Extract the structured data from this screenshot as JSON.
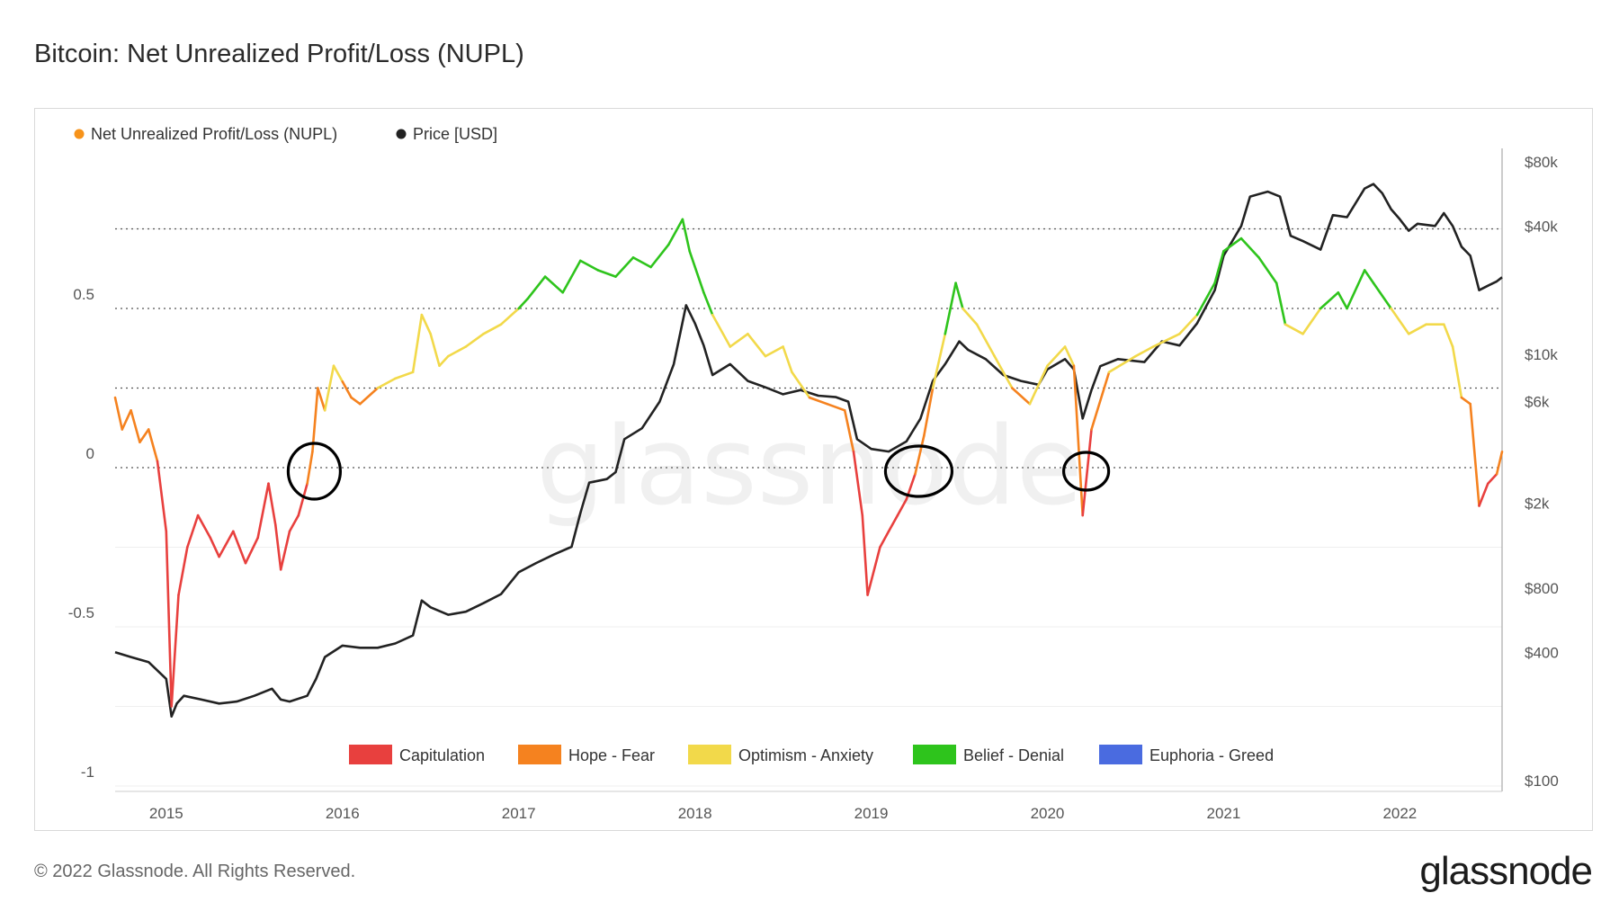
{
  "title": "Bitcoin: Net Unrealized Profit/Loss (NUPL)",
  "footer": "© 2022 Glassnode. All Rights Reserved.",
  "brand": "glassnode",
  "watermark": "glassnode",
  "colors": {
    "capitulation": "#e8403e",
    "hope_fear": "#f5821f",
    "optimism_anxiety": "#f2d94a",
    "belief_denial": "#2ec41c",
    "euphoria_greed": "#4a6be0",
    "price": "#222222",
    "nupl_legend": "#f7931a"
  },
  "chart_data": {
    "type": "line",
    "title": "Bitcoin: Net Unrealized Profit/Loss (NUPL)",
    "legend_top": [
      "Net Unrealized Profit/Loss (NUPL)",
      "Price [USD]"
    ],
    "legend_bottom": [
      "Capitulation",
      "Hope - Fear",
      "Optimism - Anxiety",
      "Belief - Denial",
      "Euphoria - Greed"
    ],
    "x_ticks": [
      "2015",
      "2016",
      "2017",
      "2018",
      "2019",
      "2020",
      "2021",
      "2022"
    ],
    "x_range": [
      2014.71,
      2022.58
    ],
    "y_left_ticks": [
      {
        "label": "0.5",
        "value": 0.5
      },
      {
        "label": "0",
        "value": 0
      },
      {
        "label": "-0.5",
        "value": -0.5
      },
      {
        "label": "-1",
        "value": -1
      }
    ],
    "y_left_range": [
      -1,
      1
    ],
    "y_right_ticks": [
      {
        "label": "$80k",
        "value": 80000
      },
      {
        "label": "$40k",
        "value": 40000
      },
      {
        "label": "$10k",
        "value": 10000
      },
      {
        "label": "$6k",
        "value": 6000
      },
      {
        "label": "$2k",
        "value": 2000
      },
      {
        "label": "$800",
        "value": 800
      },
      {
        "label": "$400",
        "value": 400
      },
      {
        "label": "$100",
        "value": 100
      }
    ],
    "y_right_scale": "log",
    "zone_thresholds": [
      0,
      0.25,
      0.5,
      0.75
    ],
    "series": [
      {
        "name": "Net Unrealized Profit/Loss (NUPL)",
        "axis": "left",
        "points": [
          [
            2014.71,
            0.22
          ],
          [
            2014.75,
            0.12
          ],
          [
            2014.8,
            0.18
          ],
          [
            2014.85,
            0.08
          ],
          [
            2014.9,
            0.12
          ],
          [
            2014.95,
            0.02
          ],
          [
            2015.0,
            -0.2
          ],
          [
            2015.03,
            -0.75
          ],
          [
            2015.07,
            -0.4
          ],
          [
            2015.12,
            -0.25
          ],
          [
            2015.18,
            -0.15
          ],
          [
            2015.25,
            -0.22
          ],
          [
            2015.3,
            -0.28
          ],
          [
            2015.38,
            -0.2
          ],
          [
            2015.45,
            -0.3
          ],
          [
            2015.52,
            -0.22
          ],
          [
            2015.58,
            -0.05
          ],
          [
            2015.62,
            -0.18
          ],
          [
            2015.65,
            -0.32
          ],
          [
            2015.7,
            -0.2
          ],
          [
            2015.75,
            -0.15
          ],
          [
            2015.8,
            -0.05
          ],
          [
            2015.83,
            0.05
          ],
          [
            2015.86,
            0.25
          ],
          [
            2015.9,
            0.18
          ],
          [
            2015.95,
            0.32
          ],
          [
            2016.0,
            0.27
          ],
          [
            2016.05,
            0.22
          ],
          [
            2016.1,
            0.2
          ],
          [
            2016.2,
            0.25
          ],
          [
            2016.3,
            0.28
          ],
          [
            2016.4,
            0.3
          ],
          [
            2016.45,
            0.48
          ],
          [
            2016.5,
            0.42
          ],
          [
            2016.55,
            0.32
          ],
          [
            2016.6,
            0.35
          ],
          [
            2016.7,
            0.38
          ],
          [
            2016.8,
            0.42
          ],
          [
            2016.9,
            0.45
          ],
          [
            2017.0,
            0.5
          ],
          [
            2017.05,
            0.53
          ],
          [
            2017.15,
            0.6
          ],
          [
            2017.25,
            0.55
          ],
          [
            2017.35,
            0.65
          ],
          [
            2017.45,
            0.62
          ],
          [
            2017.55,
            0.6
          ],
          [
            2017.65,
            0.66
          ],
          [
            2017.75,
            0.63
          ],
          [
            2017.85,
            0.7
          ],
          [
            2017.93,
            0.78
          ],
          [
            2017.97,
            0.68
          ],
          [
            2018.05,
            0.55
          ],
          [
            2018.1,
            0.48
          ],
          [
            2018.2,
            0.38
          ],
          [
            2018.3,
            0.42
          ],
          [
            2018.4,
            0.35
          ],
          [
            2018.5,
            0.38
          ],
          [
            2018.55,
            0.3
          ],
          [
            2018.65,
            0.22
          ],
          [
            2018.75,
            0.2
          ],
          [
            2018.85,
            0.18
          ],
          [
            2018.9,
            0.05
          ],
          [
            2018.95,
            -0.15
          ],
          [
            2018.98,
            -0.4
          ],
          [
            2019.05,
            -0.25
          ],
          [
            2019.1,
            -0.2
          ],
          [
            2019.15,
            -0.15
          ],
          [
            2019.2,
            -0.1
          ],
          [
            2019.25,
            -0.02
          ],
          [
            2019.3,
            0.1
          ],
          [
            2019.35,
            0.25
          ],
          [
            2019.42,
            0.42
          ],
          [
            2019.48,
            0.58
          ],
          [
            2019.52,
            0.5
          ],
          [
            2019.6,
            0.45
          ],
          [
            2019.7,
            0.35
          ],
          [
            2019.8,
            0.25
          ],
          [
            2019.9,
            0.2
          ],
          [
            2020.0,
            0.32
          ],
          [
            2020.1,
            0.38
          ],
          [
            2020.15,
            0.32
          ],
          [
            2020.2,
            -0.15
          ],
          [
            2020.25,
            0.12
          ],
          [
            2020.35,
            0.3
          ],
          [
            2020.5,
            0.35
          ],
          [
            2020.6,
            0.38
          ],
          [
            2020.75,
            0.42
          ],
          [
            2020.85,
            0.48
          ],
          [
            2020.95,
            0.58
          ],
          [
            2021.0,
            0.68
          ],
          [
            2021.1,
            0.72
          ],
          [
            2021.2,
            0.66
          ],
          [
            2021.3,
            0.58
          ],
          [
            2021.35,
            0.45
          ],
          [
            2021.45,
            0.42
          ],
          [
            2021.55,
            0.5
          ],
          [
            2021.65,
            0.55
          ],
          [
            2021.7,
            0.5
          ],
          [
            2021.8,
            0.62
          ],
          [
            2021.85,
            0.58
          ],
          [
            2021.95,
            0.5
          ],
          [
            2022.05,
            0.42
          ],
          [
            2022.15,
            0.45
          ],
          [
            2022.25,
            0.45
          ],
          [
            2022.3,
            0.38
          ],
          [
            2022.35,
            0.22
          ],
          [
            2022.4,
            0.2
          ],
          [
            2022.45,
            -0.12
          ],
          [
            2022.5,
            -0.05
          ],
          [
            2022.55,
            -0.02
          ],
          [
            2022.58,
            0.05
          ]
        ]
      },
      {
        "name": "Price [USD]",
        "axis": "right",
        "points": [
          [
            2014.71,
            400
          ],
          [
            2014.8,
            380
          ],
          [
            2014.9,
            360
          ],
          [
            2015.0,
            300
          ],
          [
            2015.03,
            200
          ],
          [
            2015.06,
            230
          ],
          [
            2015.1,
            250
          ],
          [
            2015.2,
            240
          ],
          [
            2015.3,
            230
          ],
          [
            2015.4,
            235
          ],
          [
            2015.5,
            250
          ],
          [
            2015.6,
            270
          ],
          [
            2015.65,
            240
          ],
          [
            2015.7,
            235
          ],
          [
            2015.8,
            250
          ],
          [
            2015.85,
            300
          ],
          [
            2015.9,
            380
          ],
          [
            2016.0,
            430
          ],
          [
            2016.1,
            420
          ],
          [
            2016.2,
            420
          ],
          [
            2016.3,
            440
          ],
          [
            2016.4,
            480
          ],
          [
            2016.45,
            700
          ],
          [
            2016.5,
            650
          ],
          [
            2016.6,
            600
          ],
          [
            2016.7,
            620
          ],
          [
            2016.8,
            680
          ],
          [
            2016.9,
            750
          ],
          [
            2017.0,
            950
          ],
          [
            2017.1,
            1050
          ],
          [
            2017.2,
            1150
          ],
          [
            2017.3,
            1250
          ],
          [
            2017.35,
            1800
          ],
          [
            2017.4,
            2500
          ],
          [
            2017.5,
            2600
          ],
          [
            2017.55,
            2800
          ],
          [
            2017.6,
            4000
          ],
          [
            2017.7,
            4500
          ],
          [
            2017.8,
            6000
          ],
          [
            2017.88,
            9000
          ],
          [
            2017.95,
            17000
          ],
          [
            2018.0,
            14000
          ],
          [
            2018.05,
            11000
          ],
          [
            2018.1,
            8000
          ],
          [
            2018.2,
            9000
          ],
          [
            2018.3,
            7500
          ],
          [
            2018.4,
            7000
          ],
          [
            2018.5,
            6500
          ],
          [
            2018.6,
            6800
          ],
          [
            2018.7,
            6400
          ],
          [
            2018.8,
            6300
          ],
          [
            2018.87,
            6000
          ],
          [
            2018.92,
            4000
          ],
          [
            2019.0,
            3600
          ],
          [
            2019.1,
            3500
          ],
          [
            2019.2,
            3900
          ],
          [
            2019.28,
            5000
          ],
          [
            2019.35,
            7500
          ],
          [
            2019.42,
            9000
          ],
          [
            2019.5,
            11500
          ],
          [
            2019.55,
            10500
          ],
          [
            2019.65,
            9500
          ],
          [
            2019.75,
            8000
          ],
          [
            2019.85,
            7500
          ],
          [
            2019.95,
            7200
          ],
          [
            2020.0,
            8500
          ],
          [
            2020.1,
            9500
          ],
          [
            2020.15,
            8500
          ],
          [
            2020.2,
            5000
          ],
          [
            2020.25,
            6800
          ],
          [
            2020.3,
            8800
          ],
          [
            2020.4,
            9500
          ],
          [
            2020.55,
            9200
          ],
          [
            2020.65,
            11500
          ],
          [
            2020.75,
            11000
          ],
          [
            2020.85,
            14000
          ],
          [
            2020.95,
            20000
          ],
          [
            2021.0,
            29000
          ],
          [
            2021.1,
            40000
          ],
          [
            2021.15,
            55000
          ],
          [
            2021.25,
            58000
          ],
          [
            2021.32,
            55000
          ],
          [
            2021.38,
            36000
          ],
          [
            2021.45,
            34000
          ],
          [
            2021.55,
            31000
          ],
          [
            2021.62,
            45000
          ],
          [
            2021.7,
            44000
          ],
          [
            2021.8,
            60000
          ],
          [
            2021.85,
            63000
          ],
          [
            2021.9,
            57000
          ],
          [
            2021.95,
            48000
          ],
          [
            2022.0,
            43000
          ],
          [
            2022.05,
            38000
          ],
          [
            2022.1,
            41000
          ],
          [
            2022.2,
            40000
          ],
          [
            2022.25,
            46000
          ],
          [
            2022.3,
            40000
          ],
          [
            2022.35,
            32000
          ],
          [
            2022.4,
            29000
          ],
          [
            2022.45,
            20000
          ],
          [
            2022.5,
            21000
          ],
          [
            2022.55,
            22000
          ],
          [
            2022.58,
            23000
          ]
        ]
      }
    ]
  }
}
